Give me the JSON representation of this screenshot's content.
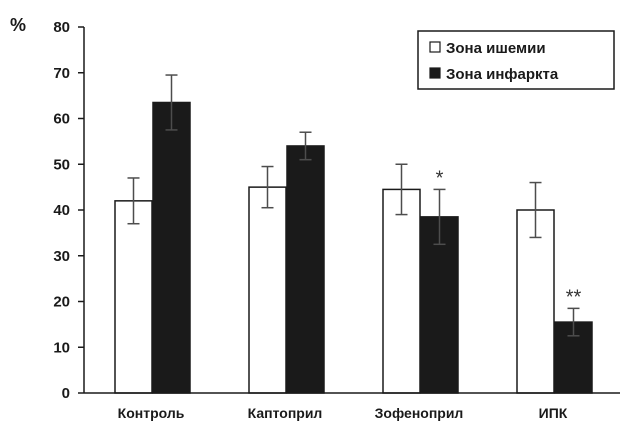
{
  "chart_data": {
    "type": "bar",
    "ylabel": "%",
    "ylim": [
      0,
      80
    ],
    "yticks": [
      "0",
      "10",
      "20",
      "30",
      "40",
      "50",
      "60",
      "70",
      "80"
    ],
    "categories": [
      "Контроль",
      "Каптоприл",
      "Зофеноприл",
      "ИПК"
    ],
    "series": [
      {
        "name": "Зона ишемии",
        "fill": "#ffffff",
        "values": [
          42,
          45,
          44.5,
          40
        ],
        "errors": [
          5,
          4.5,
          5.5,
          6
        ]
      },
      {
        "name": "Зона инфаркта",
        "fill": "#1a1a1a",
        "values": [
          63.5,
          54,
          38.5,
          15.5
        ],
        "errors": [
          6,
          3,
          6,
          3
        ]
      }
    ],
    "annotations": [
      {
        "category_index": 2,
        "series_index": 1,
        "text": "*"
      },
      {
        "category_index": 3,
        "series_index": 1,
        "text": "**"
      }
    ],
    "legend": "top-right",
    "grid": false
  }
}
